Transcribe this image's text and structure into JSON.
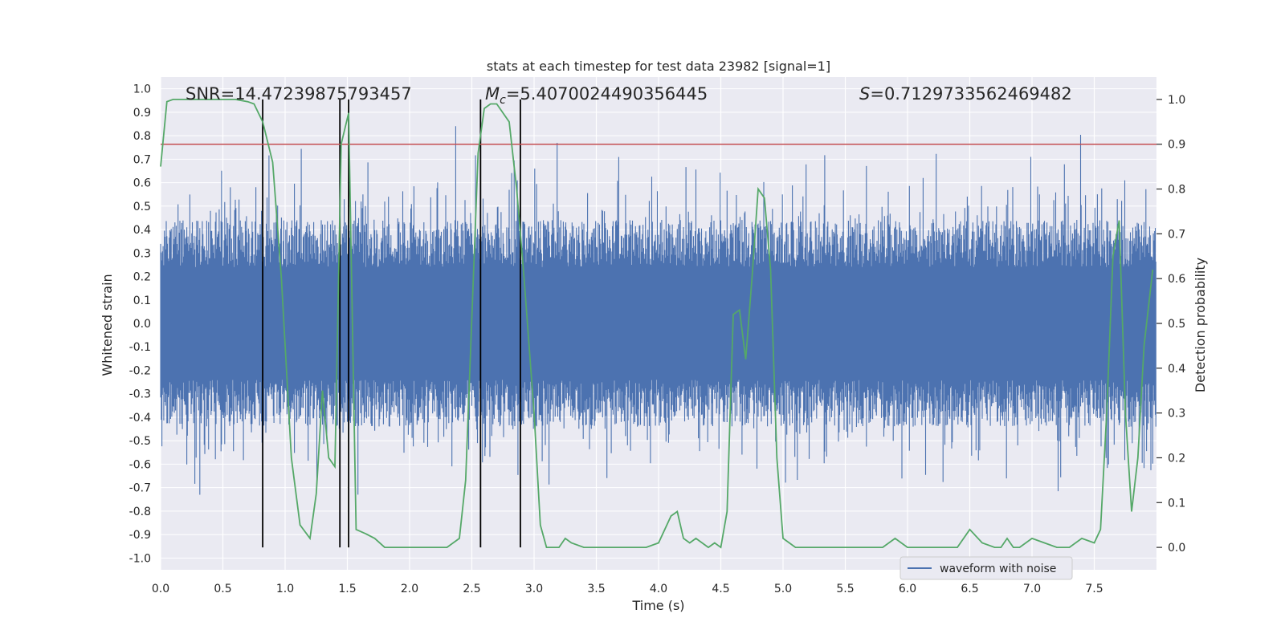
{
  "chart_data": {
    "type": "line",
    "title": "stats at each timestep for test data 23982 [signal=1]",
    "xlabel": "Time (s)",
    "ylabel_left": "Whitened strain",
    "ylabel_right": "Detection probability",
    "xlim": [
      0.0,
      8.0
    ],
    "ylim_left": [
      -1.05,
      1.05
    ],
    "ylim_right": [
      -0.05,
      1.05
    ],
    "grid": true,
    "x_ticks": [
      "0.0",
      "0.5",
      "1.0",
      "1.5",
      "2.0",
      "2.5",
      "3.0",
      "3.5",
      "4.0",
      "4.5",
      "5.0",
      "5.5",
      "6.0",
      "6.5",
      "7.0",
      "7.5"
    ],
    "x_tick_values": [
      0,
      0.5,
      1,
      1.5,
      2,
      2.5,
      3,
      3.5,
      4,
      4.5,
      5,
      5.5,
      6,
      6.5,
      7,
      7.5
    ],
    "y_left_ticks": [
      "1.0",
      "0.9",
      "0.8",
      "0.7",
      "0.6",
      "0.5",
      "0.4",
      "0.3",
      "0.2",
      "0.1",
      "0.0",
      "-0.1",
      "-0.2",
      "-0.3",
      "-0.4",
      "-0.5",
      "-0.6",
      "-0.7",
      "-0.8",
      "-0.9",
      "-1.0"
    ],
    "y_left_tick_values": [
      1.0,
      0.9,
      0.8,
      0.7,
      0.6,
      0.5,
      0.4,
      0.3,
      0.2,
      0.1,
      0.0,
      -0.1,
      -0.2,
      -0.3,
      -0.4,
      -0.5,
      -0.6,
      -0.7,
      -0.8,
      -0.9,
      -1.0
    ],
    "y_right_ticks": [
      "1.0",
      "0.9",
      "0.8",
      "0.7",
      "0.6",
      "0.5",
      "0.4",
      "0.3",
      "0.2",
      "0.1",
      "0.0"
    ],
    "y_right_tick_values": [
      1.0,
      0.9,
      0.8,
      0.7,
      0.6,
      0.5,
      0.4,
      0.3,
      0.2,
      0.1,
      0.0
    ],
    "annotations": {
      "snr": "SNR=14.47239875793457",
      "mc_symbol": "M",
      "mc_sub": "c",
      "mc_value": "=5.4070024490356445",
      "s_symbol": "S",
      "s_value": "=0.7129733562469482"
    },
    "threshold": {
      "value": 0.9,
      "axis": "right",
      "color": "#c44e52"
    },
    "vertical_markers_s": [
      0.82,
      1.44,
      1.51,
      2.57,
      2.89
    ],
    "legend": {
      "label": "waveform with noise",
      "placement": "lower-right"
    },
    "waveform": {
      "name": "waveform with noise",
      "color": "#4c72b0",
      "duration_s": 8.0,
      "n_samples": 1600,
      "typical_envelope": [
        -0.4,
        0.4
      ],
      "observed_range": [
        -1.0,
        0.98
      ]
    },
    "detection_probability": {
      "name": "detection probability",
      "color": "#55a868",
      "x": [
        0.0,
        0.05,
        0.1,
        0.2,
        0.3,
        0.4,
        0.5,
        0.6,
        0.7,
        0.75,
        0.82,
        0.9,
        0.97,
        1.05,
        1.12,
        1.2,
        1.25,
        1.3,
        1.35,
        1.4,
        1.45,
        1.51,
        1.57,
        1.65,
        1.72,
        1.8,
        1.9,
        2.0,
        2.1,
        2.2,
        2.3,
        2.4,
        2.45,
        2.55,
        2.6,
        2.65,
        2.7,
        2.8,
        2.86,
        2.92,
        3.0,
        3.05,
        3.1,
        3.2,
        3.25,
        3.3,
        3.4,
        3.5,
        3.6,
        3.7,
        3.8,
        3.9,
        4.0,
        4.1,
        4.15,
        4.2,
        4.25,
        4.3,
        4.4,
        4.45,
        4.5,
        4.55,
        4.6,
        4.65,
        4.7,
        4.75,
        4.8,
        4.85,
        4.9,
        4.95,
        5.0,
        5.05,
        5.1,
        5.15,
        5.2,
        5.3,
        5.4,
        5.5,
        5.6,
        5.7,
        5.8,
        5.9,
        6.0,
        6.1,
        6.2,
        6.3,
        6.4,
        6.5,
        6.6,
        6.7,
        6.75,
        6.8,
        6.85,
        6.9,
        7.0,
        7.1,
        7.2,
        7.3,
        7.4,
        7.5,
        7.55,
        7.6,
        7.65,
        7.7,
        7.75,
        7.8,
        7.85,
        7.9,
        7.97
      ],
      "y": [
        0.85,
        0.995,
        1.0,
        1.0,
        1.0,
        1.0,
        1.0,
        1.0,
        0.995,
        0.99,
        0.95,
        0.86,
        0.6,
        0.2,
        0.05,
        0.02,
        0.12,
        0.35,
        0.2,
        0.18,
        0.9,
        0.97,
        0.04,
        0.03,
        0.02,
        0.0,
        0.0,
        0.0,
        0.0,
        0.0,
        0.0,
        0.02,
        0.15,
        0.88,
        0.98,
        0.99,
        0.99,
        0.95,
        0.8,
        0.6,
        0.3,
        0.05,
        0.0,
        0.0,
        0.02,
        0.01,
        0.0,
        0.0,
        0.0,
        0.0,
        0.0,
        0.0,
        0.01,
        0.07,
        0.08,
        0.02,
        0.01,
        0.02,
        0.0,
        0.01,
        0.0,
        0.08,
        0.52,
        0.53,
        0.42,
        0.6,
        0.8,
        0.78,
        0.62,
        0.2,
        0.02,
        0.01,
        0.0,
        0.0,
        0.0,
        0.0,
        0.0,
        0.0,
        0.0,
        0.0,
        0.0,
        0.02,
        0.0,
        0.0,
        0.0,
        0.0,
        0.0,
        0.04,
        0.01,
        0.0,
        0.0,
        0.02,
        0.0,
        0.0,
        0.02,
        0.01,
        0.0,
        0.0,
        0.02,
        0.01,
        0.04,
        0.3,
        0.65,
        0.73,
        0.3,
        0.08,
        0.2,
        0.45,
        0.62
      ]
    }
  }
}
